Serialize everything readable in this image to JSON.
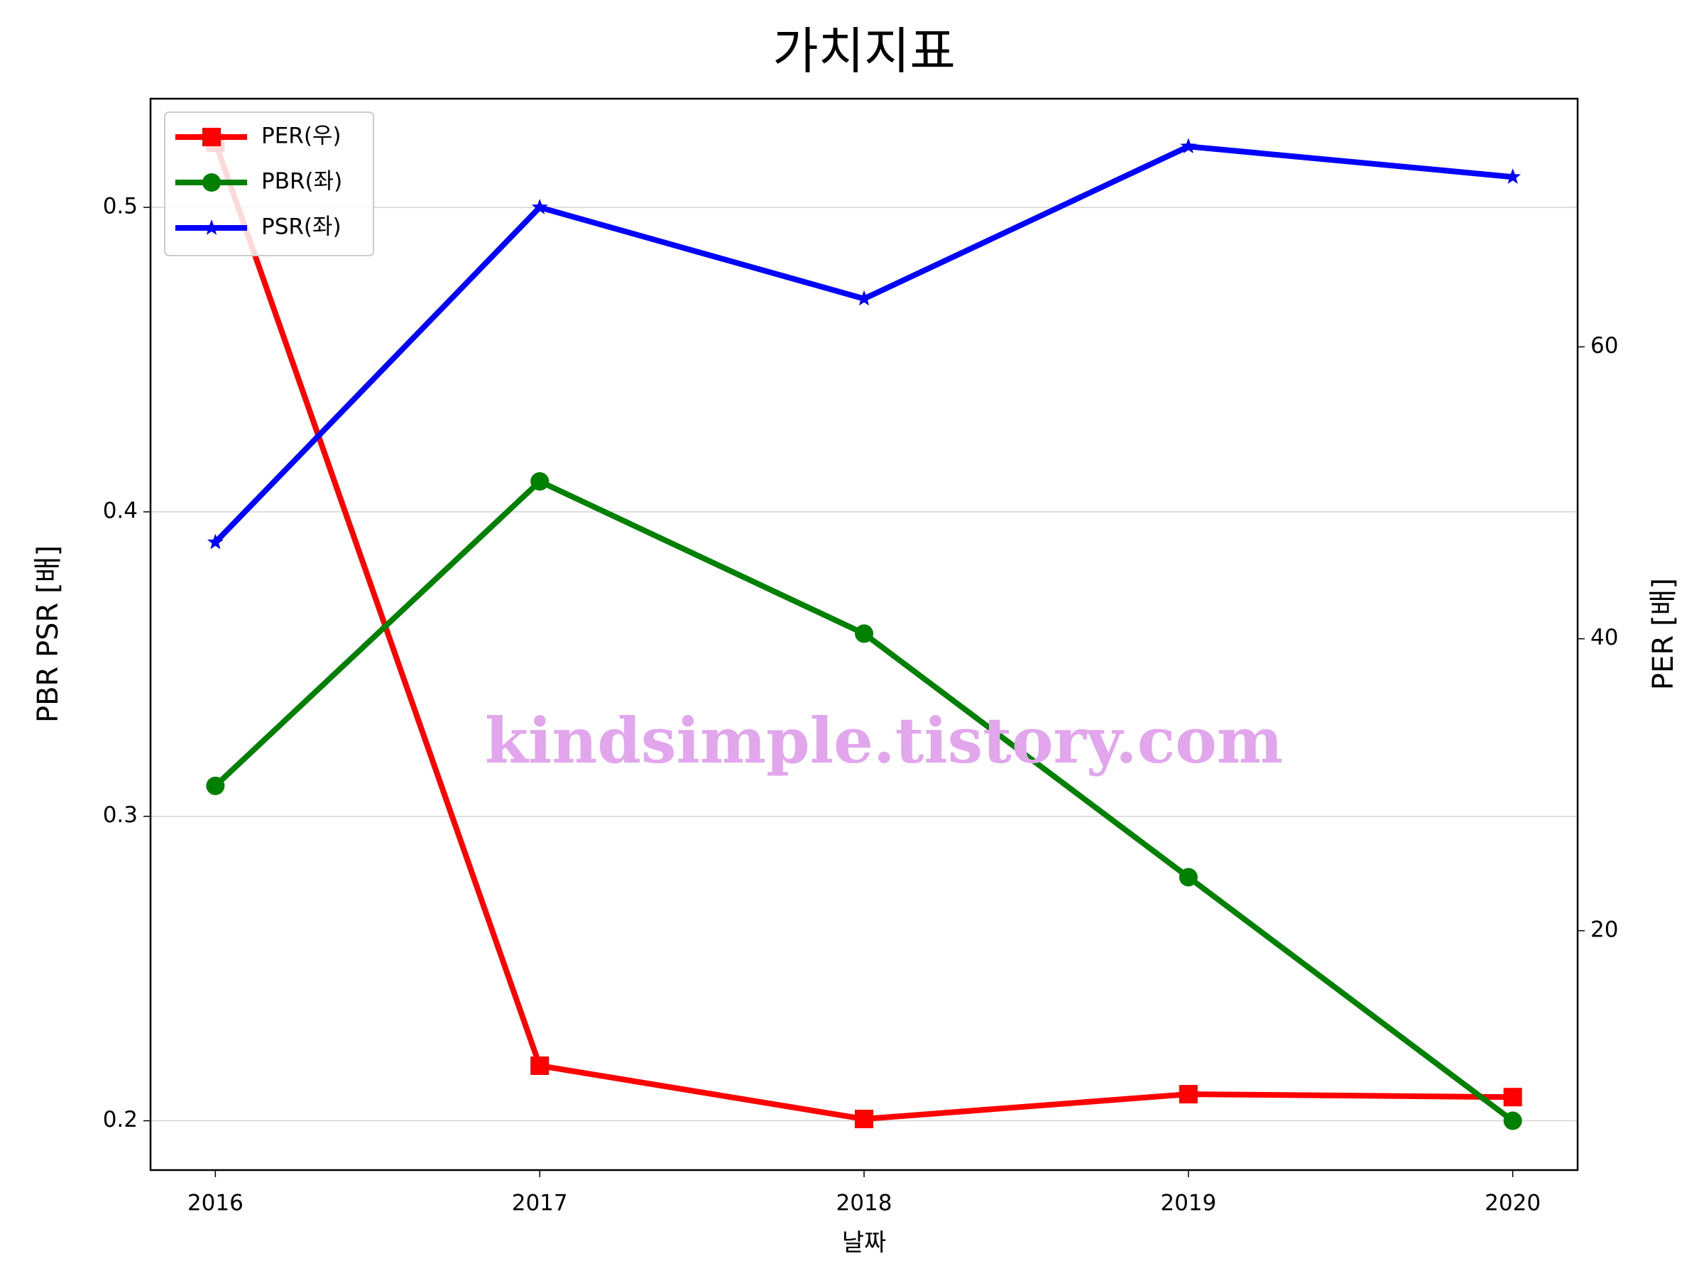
{
  "chart_data": {
    "type": "line",
    "title": "가치지표",
    "x_label": "날짜",
    "y_label": "PBR PSR [배]",
    "y2_label": "PER [배]",
    "y_label_color": "#008000",
    "y2_label_color": "#ff0000",
    "annotation": "kindsimple.tistory.com",
    "x": [
      2016,
      2017,
      2018,
      2019,
      2020
    ],
    "xlim": [
      2015.8,
      2020.2
    ],
    "xticks": [
      2016,
      2017,
      2018,
      2019,
      2020
    ],
    "ylim": [
      0.1838,
      0.5357
    ],
    "yticks": [
      0.2,
      0.3,
      0.4,
      0.5
    ],
    "y2lim": [
      3.6,
      77
    ],
    "y2ticks": [
      20,
      40,
      60
    ],
    "grid": true,
    "legend": "upper left",
    "series": [
      {
        "name": "PER(우)",
        "color": "#ff0000",
        "marker": "square",
        "axis": "y2",
        "values": [
          74.0,
          10.75,
          7.1,
          8.8,
          8.6
        ]
      },
      {
        "name": "PBR(좌)",
        "color": "#008000",
        "marker": "circle",
        "values": [
          0.31,
          0.41,
          0.36,
          0.28,
          0.2
        ]
      },
      {
        "name": "PSR(좌)",
        "color": "#0000ff",
        "marker": "star",
        "values": [
          0.39,
          0.5,
          0.47,
          0.52,
          0.51
        ]
      }
    ]
  }
}
